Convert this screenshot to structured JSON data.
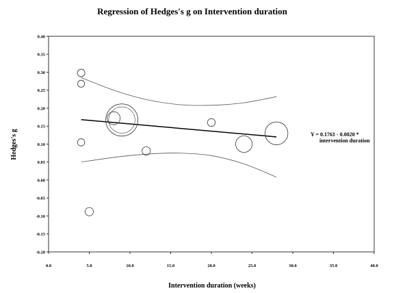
{
  "chart_data": {
    "type": "scatter",
    "title": "Regression of Hedges's g on Intervention duration",
    "xlabel": "Intervention duration (weeks)",
    "ylabel": "Hedges's g",
    "xlim": [
      0,
      40
    ],
    "ylim": [
      -0.2,
      0.4
    ],
    "x_ticks": [
      "0.0",
      "5.0",
      "10.0",
      "15.0",
      "20.0",
      "25.0",
      "30.0",
      "35.0",
      "40.0"
    ],
    "y_ticks": [
      "0.40",
      "0.35",
      "0.30",
      "0.25",
      "0.20",
      "0.15",
      "0.10",
      "0.05",
      "0.00",
      "-0.05",
      "-0.10",
      "-0.15",
      "-0.20"
    ],
    "grid": false,
    "series": [
      {
        "points": [
          {
            "x": 4.0,
            "y": 0.298,
            "weight": 0.1
          },
          {
            "x": 4.0,
            "y": 0.268,
            "weight": 0.08
          },
          {
            "x": 4.0,
            "y": 0.105,
            "weight": 0.09
          },
          {
            "x": 5.0,
            "y": -0.088,
            "weight": 0.13
          },
          {
            "x": 8.0,
            "y": 0.172,
            "weight": 0.3
          },
          {
            "x": 9.0,
            "y": 0.167,
            "weight": 1.0
          },
          {
            "x": 12.0,
            "y": 0.081,
            "weight": 0.13
          },
          {
            "x": 20.0,
            "y": 0.16,
            "weight": 0.11
          },
          {
            "x": 24.0,
            "y": 0.1,
            "weight": 0.43
          },
          {
            "x": 28.0,
            "y": 0.13,
            "weight": 0.66
          }
        ]
      }
    ],
    "regression": {
      "intercept": 0.1761,
      "slope": -0.002,
      "x_range": [
        4,
        28
      ],
      "equation": "Y = 0.1761 - 0.0020 *",
      "equation_line2": "intervention duration"
    },
    "confidence_band": {
      "x": [
        4,
        8,
        12,
        16,
        20,
        24,
        28
      ],
      "upper": [
        0.285,
        0.25,
        0.224,
        0.21,
        0.208,
        0.215,
        0.232
      ],
      "lower": [
        0.05,
        0.063,
        0.072,
        0.075,
        0.068,
        0.045,
        0.008
      ]
    }
  }
}
